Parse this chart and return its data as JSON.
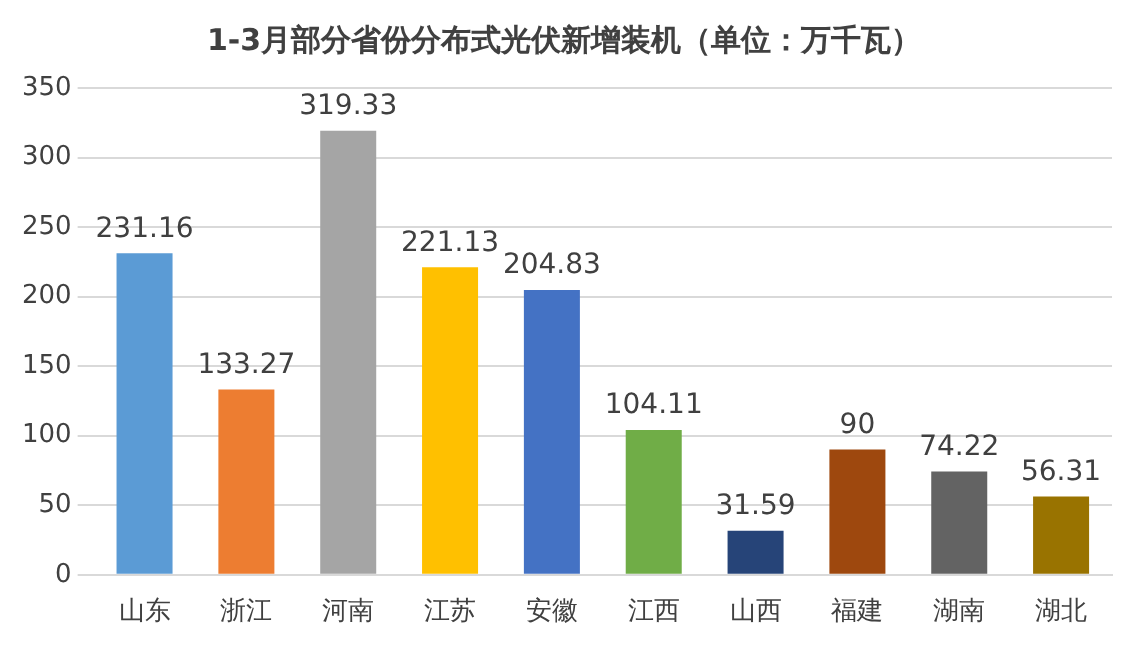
{
  "chart_data": {
    "type": "bar",
    "title": "1-3月部分省份分布式光伏新增装机（单位：万千瓦）",
    "categories": [
      "山东",
      "浙江",
      "河南",
      "江苏",
      "安徽",
      "江西",
      "山西",
      "福建",
      "湖南",
      "湖北"
    ],
    "values": [
      231.16,
      133.27,
      319.33,
      221.13,
      204.83,
      104.11,
      31.59,
      90,
      74.22,
      56.31
    ],
    "colors": [
      "#5b9bd5",
      "#ed7d31",
      "#a5a5a5",
      "#ffc000",
      "#4472c4",
      "#70ad47",
      "#264478",
      "#9e480e",
      "#636363",
      "#997300"
    ],
    "ylim": [
      0,
      350
    ],
    "yticks": [
      0,
      50,
      100,
      150,
      200,
      250,
      300,
      350
    ],
    "grid": "y",
    "data_labels": true
  }
}
